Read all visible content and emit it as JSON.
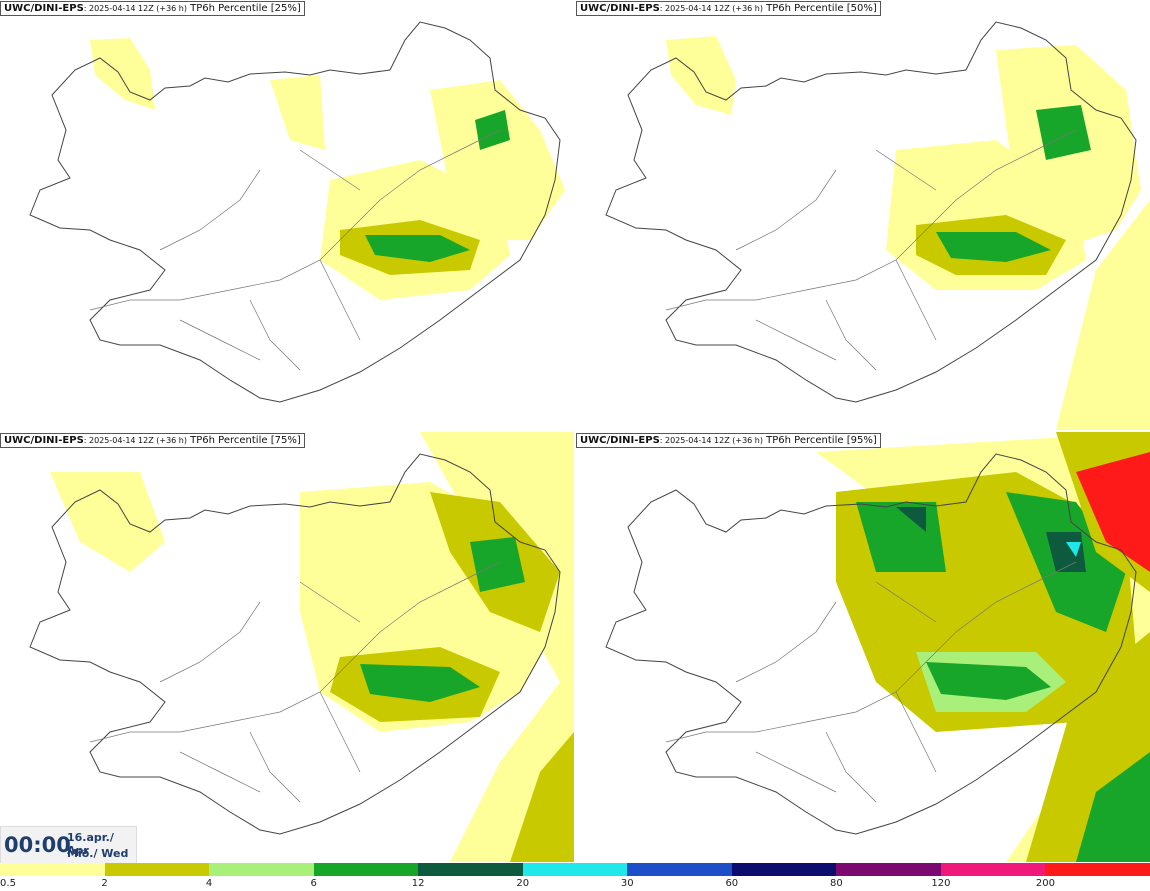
{
  "panels": [
    {
      "model": "UWC/DINI-EPS",
      "run": ": 2025-04-14 12Z (+36 h)",
      "field": " TP6h Percentile [25%]"
    },
    {
      "model": "UWC/DINI-EPS",
      "run": ": 2025-04-14 12Z (+36 h)",
      "field": " TP6h Percentile [50%]"
    },
    {
      "model": "UWC/DINI-EPS",
      "run": ": 2025-04-14 12Z (+36 h)",
      "field": " TP6h Percentile [75%]"
    },
    {
      "model": "UWC/DINI-EPS",
      "run": ": 2025-04-14 12Z (+36 h)",
      "field": " TP6h Percentile [95%]"
    }
  ],
  "time": {
    "hhmm": "00:00",
    "date": "16.apr./ Apr",
    "weekday": "Mið./ Wed"
  },
  "legend": {
    "colors": [
      "#ffff99",
      "#c9c900",
      "#a8f07a",
      "#17a62a",
      "#0e5a3e",
      "#1ee8ea",
      "#1f4fc8",
      "#0d0d70",
      "#7a0a70",
      "#f01878",
      "#ff1a1a"
    ],
    "ticks": [
      "0.5",
      "2",
      "4",
      "6",
      "12",
      "20",
      "30",
      "60",
      "80",
      "120",
      "200"
    ]
  }
}
